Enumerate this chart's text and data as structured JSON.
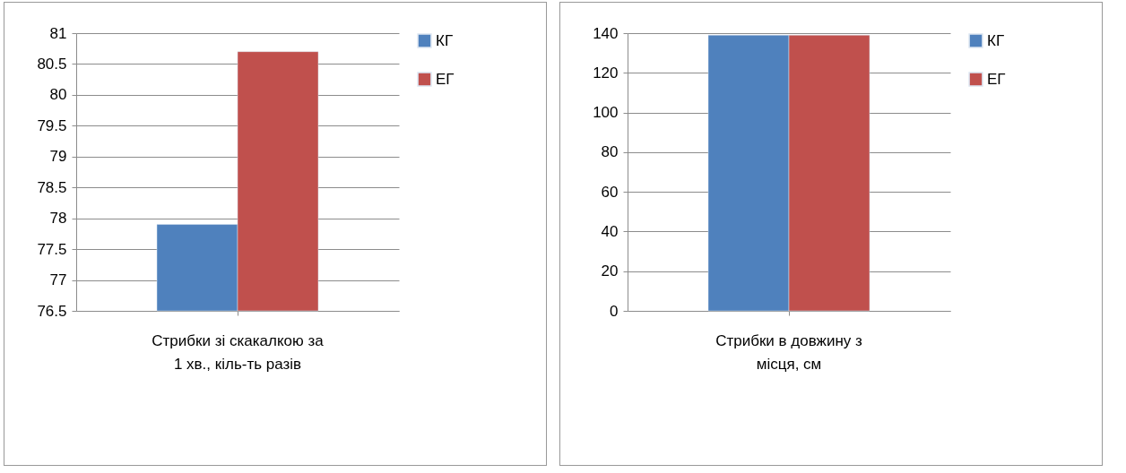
{
  "chart_data": [
    {
      "type": "bar",
      "categories": [
        "Стрибки зі скакалкою за 1 хв., кіль-ть разів"
      ],
      "series": [
        {
          "name": "КГ",
          "color": "#4f81bd",
          "values": [
            77.9
          ]
        },
        {
          "name": "ЕГ",
          "color": "#c0504d",
          "values": [
            80.7
          ]
        }
      ],
      "ylim": [
        76.5,
        81
      ],
      "yticks": [
        76.5,
        77,
        77.5,
        78,
        78.5,
        79,
        79.5,
        80,
        80.5,
        81
      ],
      "grid": "y",
      "legend": "right"
    },
    {
      "type": "bar",
      "categories": [
        "Стрибки в довжину з місця, см"
      ],
      "series": [
        {
          "name": "КГ",
          "color": "#4f81bd",
          "values": [
            139
          ]
        },
        {
          "name": "ЕГ",
          "color": "#c0504d",
          "values": [
            139
          ]
        }
      ],
      "ylim": [
        0,
        140
      ],
      "yticks": [
        0,
        20,
        40,
        60,
        80,
        100,
        120,
        140
      ],
      "grid": "y",
      "legend": "right"
    }
  ]
}
